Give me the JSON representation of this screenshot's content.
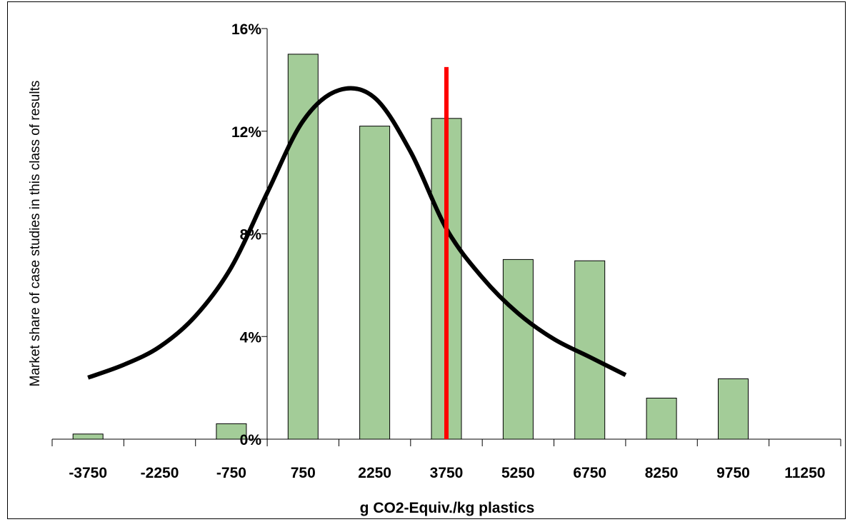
{
  "chart_data": {
    "type": "bar",
    "title": "",
    "xlabel": "g CO2-Equiv./kg plastics",
    "ylabel": "Market share of case studies in this class of results",
    "categories": [
      "-3750",
      "-2250",
      "-750",
      "750",
      "2250",
      "3750",
      "5250",
      "6750",
      "8250",
      "9750",
      "11250"
    ],
    "x_values": [
      -3750,
      -2250,
      -750,
      750,
      2250,
      3750,
      5250,
      6750,
      8250,
      9750,
      11250
    ],
    "series": [
      {
        "values": [
          0.2,
          0,
          0.6,
          15.0,
          12.2,
          12.5,
          7.0,
          6.95,
          1.6,
          2.35,
          0
        ]
      }
    ],
    "fitted_curve": {
      "x": [
        -3750,
        -3000,
        -2250,
        -1500,
        -750,
        0,
        750,
        1500,
        2250,
        3000,
        3750,
        4500,
        5250,
        6000,
        6750,
        7500
      ],
      "y": [
        2.4,
        2.9,
        3.6,
        4.8,
        6.7,
        9.6,
        12.4,
        13.6,
        13.3,
        11.2,
        8.2,
        6.3,
        4.9,
        3.9,
        3.2,
        2.5
      ]
    },
    "reference_line": {
      "x": 3750,
      "y_max": 14.5,
      "color": "#ff0000"
    },
    "yticks": [
      0,
      4,
      8,
      12,
      16
    ],
    "ytick_labels": [
      "0%",
      "4%",
      "8%",
      "12%",
      "16%"
    ],
    "ylim": [
      0,
      16
    ],
    "colors": {
      "bar_fill": "#a3cc98",
      "bar_stroke": "#000000",
      "curve": "#000000",
      "reference": "#ff0000"
    },
    "grid": false,
    "legend": "none"
  }
}
